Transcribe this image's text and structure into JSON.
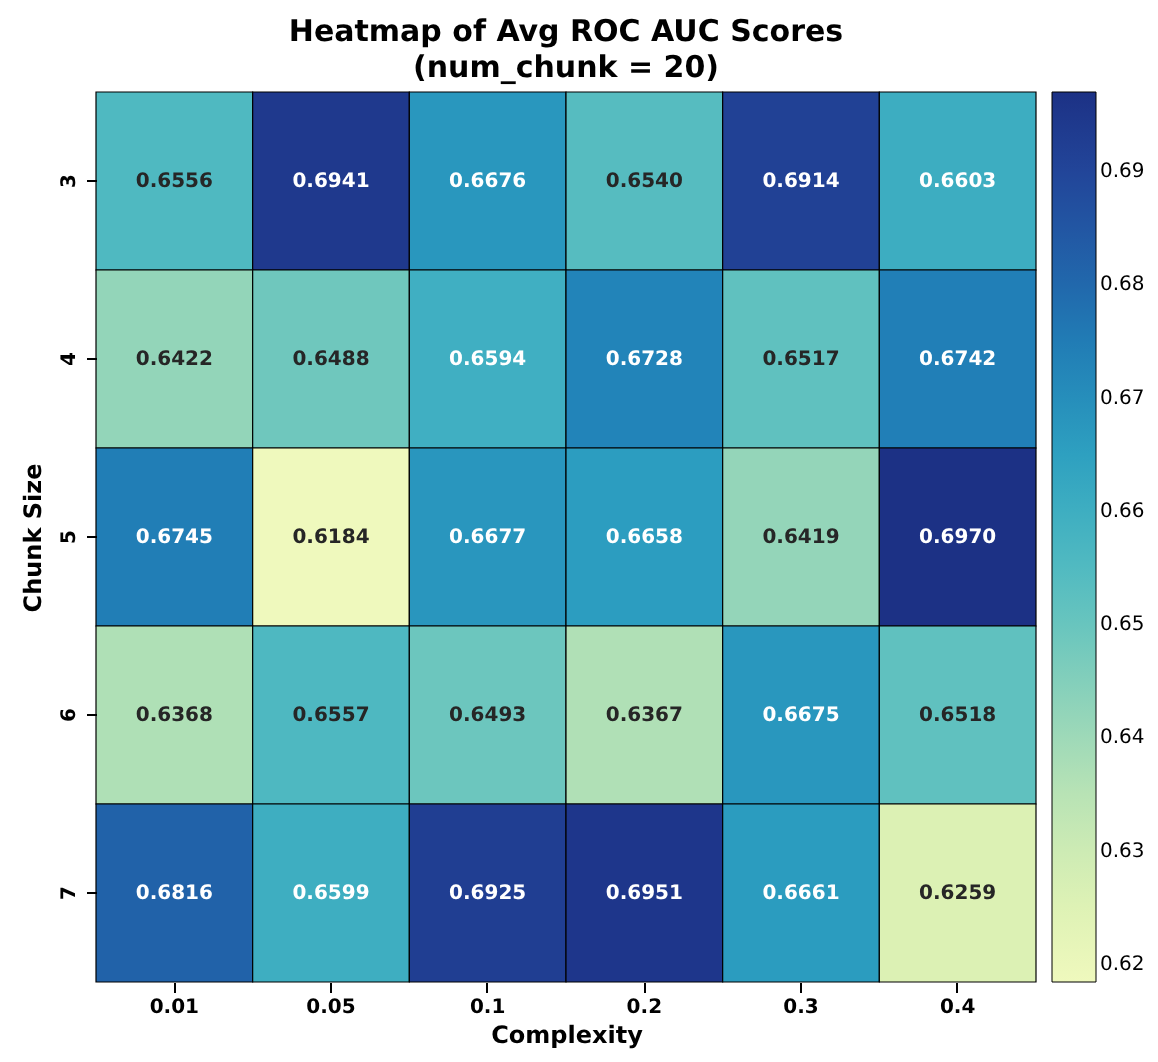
{
  "chart_data": {
    "type": "heatmap",
    "title": "Heatmap of Avg ROC AUC Scores\n(num_chunk = 20)",
    "xlabel": "Complexity",
    "ylabel": "Chunk Size",
    "categories": [
      "0.01",
      "0.05",
      "0.1",
      "0.2",
      "0.3",
      "0.4"
    ],
    "y_categories": [
      "3",
      "4",
      "5",
      "6",
      "7"
    ],
    "cells": [
      [
        0.6556,
        0.6941,
        0.6676,
        0.654,
        0.6914,
        0.6603
      ],
      [
        0.6422,
        0.6488,
        0.6594,
        0.6728,
        0.6517,
        0.6742
      ],
      [
        0.6745,
        0.6184,
        0.6677,
        0.6658,
        0.6419,
        0.697
      ],
      [
        0.6368,
        0.6557,
        0.6493,
        0.6367,
        0.6675,
        0.6518
      ],
      [
        0.6816,
        0.6599,
        0.6925,
        0.6951,
        0.6661,
        0.6259
      ]
    ],
    "cell_labels": [
      [
        "0.6556",
        "0.6941",
        "0.6676",
        "0.6540",
        "0.6914",
        "0.6603"
      ],
      [
        "0.6422",
        "0.6488",
        "0.6594",
        "0.6728",
        "0.6517",
        "0.6742"
      ],
      [
        "0.6745",
        "0.6184",
        "0.6677",
        "0.6658",
        "0.6419",
        "0.6970"
      ],
      [
        "0.6368",
        "0.6557",
        "0.6493",
        "0.6367",
        "0.6675",
        "0.6518"
      ],
      [
        "0.6816",
        "0.6599",
        "0.6925",
        "0.6951",
        "0.6661",
        "0.6259"
      ]
    ],
    "clim": [
      0.6184,
      0.697
    ],
    "cticks": [
      0.62,
      0.63,
      0.64,
      0.65,
      0.66,
      0.67,
      0.68,
      0.69
    ]
  }
}
